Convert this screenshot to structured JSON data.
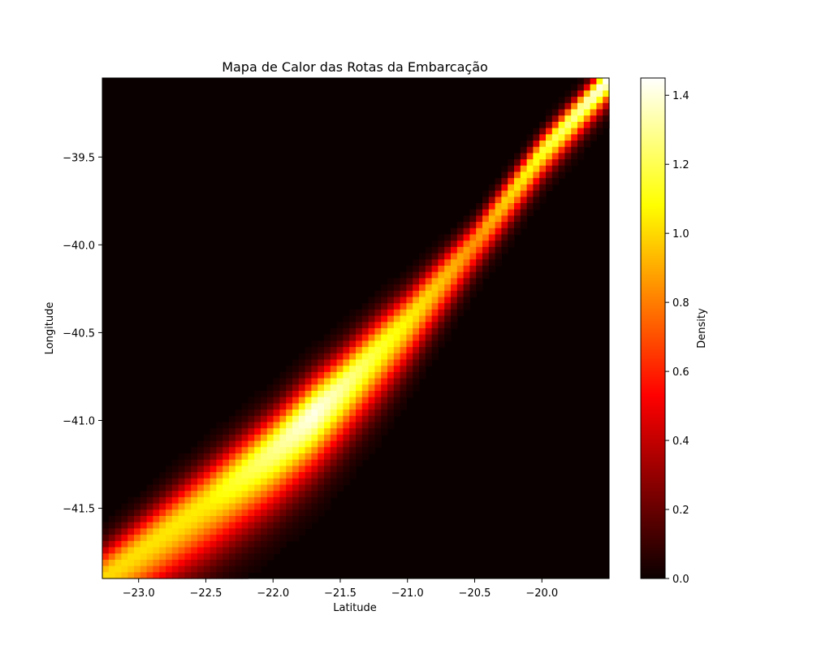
{
  "chart_data": {
    "type": "heatmap",
    "title": "Mapa de Calor das Rotas da Embarcação",
    "xlabel": "Latitude",
    "ylabel": "Longitude",
    "colorbar_label": "Density",
    "colormap": "hot",
    "xlim": [
      -23.27,
      -19.5
    ],
    "ylim": [
      -41.9,
      -39.05
    ],
    "x_ticks": [
      -23.0,
      -22.5,
      -22.0,
      -21.5,
      -21.0,
      -20.5,
      -20.0
    ],
    "x_tick_labels": [
      "−23.0",
      "−22.5",
      "−22.0",
      "−21.5",
      "−21.0",
      "−20.5",
      "−20.0"
    ],
    "y_ticks": [
      -39.5,
      -40.0,
      -40.5,
      -41.0,
      -41.5
    ],
    "y_tick_labels": [
      "−39.5",
      "−40.0",
      "−40.5",
      "−41.0",
      "−41.5"
    ],
    "colorbar_range": [
      0.0,
      1.45
    ],
    "colorbar_ticks": [
      0.0,
      0.2,
      0.4,
      0.6,
      0.8,
      1.0,
      1.2,
      1.4
    ],
    "colorbar_tick_labels": [
      "0.0",
      "0.2",
      "0.4",
      "0.6",
      "0.8",
      "1.0",
      "1.2",
      "1.4"
    ],
    "grid": false,
    "route_path": [
      {
        "lat": -23.27,
        "lon": -41.9
      },
      {
        "lat": -23.0,
        "lon": -41.75
      },
      {
        "lat": -22.5,
        "lon": -41.47
      },
      {
        "lat": -22.0,
        "lon": -41.17
      },
      {
        "lat": -21.5,
        "lon": -40.82
      },
      {
        "lat": -21.0,
        "lon": -40.43
      },
      {
        "lat": -20.5,
        "lon": -39.98
      },
      {
        "lat": -20.0,
        "lon": -39.47
      },
      {
        "lat": -19.5,
        "lon": -39.05
      }
    ],
    "density_profile": [
      {
        "lat": -23.27,
        "peak": 1.0,
        "spread": 0.14
      },
      {
        "lat": -22.5,
        "peak": 1.05,
        "spread": 0.17
      },
      {
        "lat": -21.7,
        "peak": 1.42,
        "spread": 0.17
      },
      {
        "lat": -21.2,
        "peak": 1.15,
        "spread": 0.15
      },
      {
        "lat": -20.5,
        "peak": 0.85,
        "spread": 0.09
      },
      {
        "lat": -19.5,
        "peak": 1.45,
        "spread": 0.07
      }
    ]
  }
}
